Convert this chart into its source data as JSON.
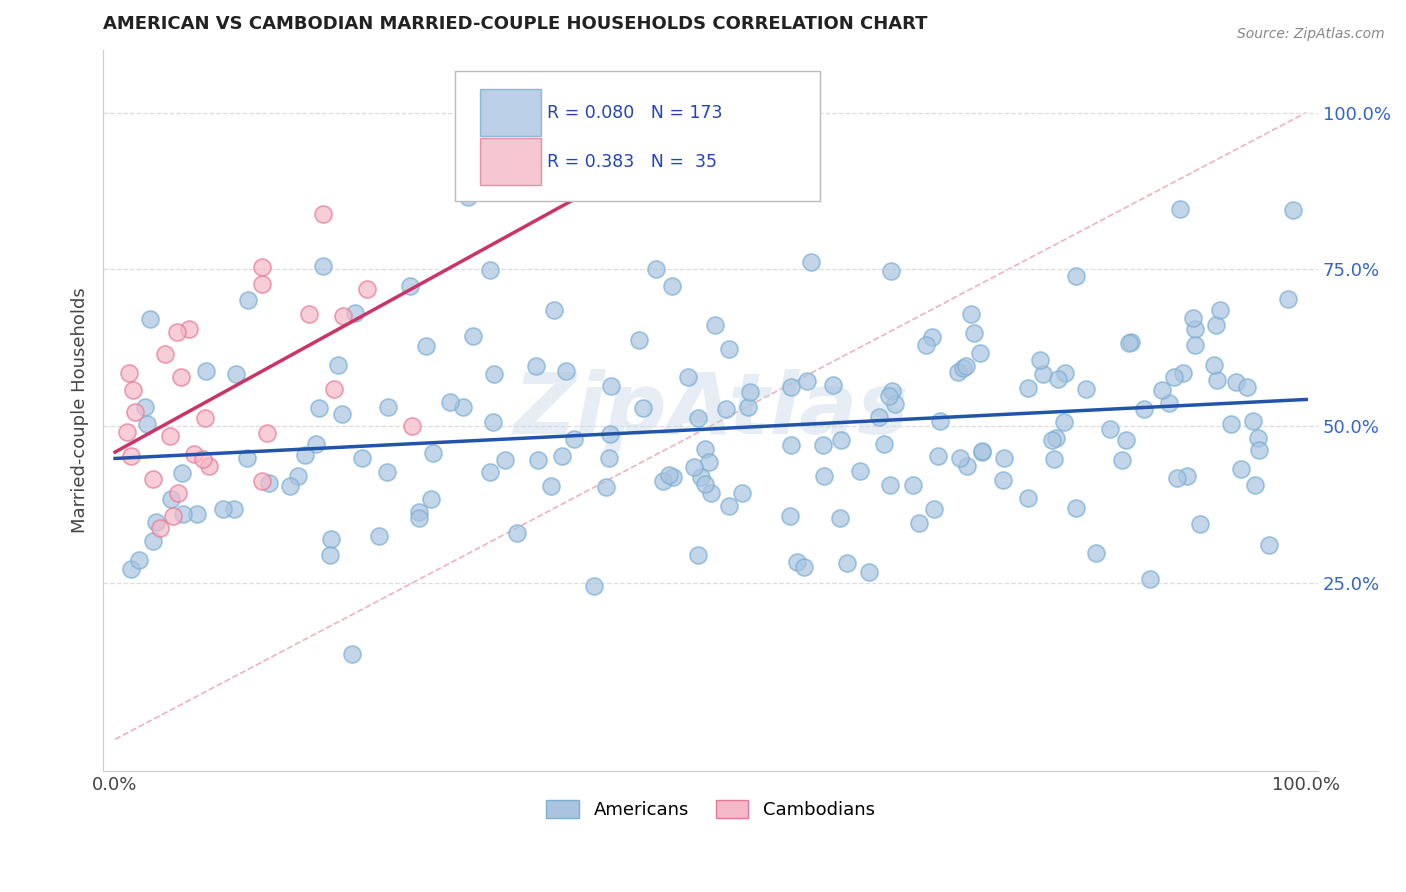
{
  "title": "AMERICAN VS CAMBODIAN MARRIED-COUPLE HOUSEHOLDS CORRELATION CHART",
  "source": "Source: ZipAtlas.com",
  "ylabel": "Married-couple Households",
  "american_color": "#aac4e0",
  "american_edge_color": "#7aafd4",
  "cambodian_color": "#f4b8c8",
  "cambodian_edge_color": "#e87898",
  "american_line_color": "#2255aa",
  "cambodian_line_color": "#cc3366",
  "diagonal_color": "#e8a0b0",
  "american_R": 0.08,
  "american_N": 173,
  "cambodian_R": 0.383,
  "cambodian_N": 35,
  "watermark": "ZipAtlas",
  "watermark_color": "#c8d8e8",
  "legend_label_american": "Americans",
  "legend_label_cambodian": "Cambodians",
  "text_color_blue": "#2244bb",
  "grid_color": "#dddddd",
  "title_color": "#222222",
  "ylabel_color": "#444444",
  "tick_color_blue": "#3366cc",
  "seed": 12345
}
